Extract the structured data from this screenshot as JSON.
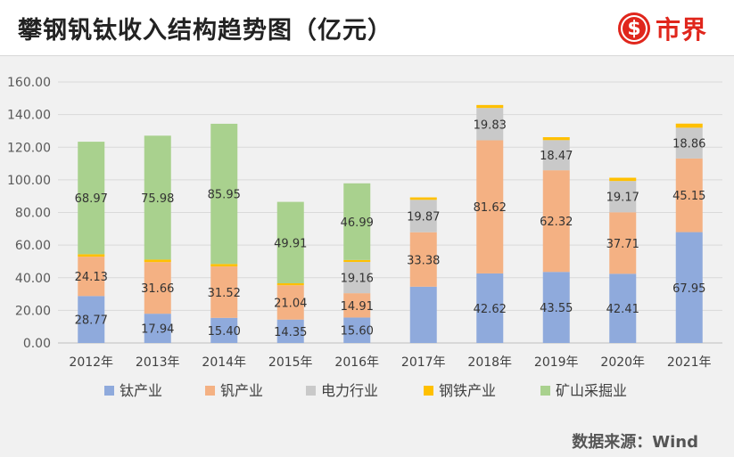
{
  "header": {
    "title": "攀钢钒钛收入结构趋势图（亿元）",
    "brand_name": "市界"
  },
  "source": "数据来源：Wind",
  "colors": {
    "钛产业": "#8faadc",
    "钒产业": "#f4b183",
    "电力行业": "#c9c9c9",
    "钢铁产业": "#ffc000",
    "矿山采掘业": "#a9d18e"
  },
  "chart_data": {
    "type": "bar",
    "stacked": true,
    "title": "攀钢钒钛收入结构趋势图（亿元）",
    "categories": [
      "2012年",
      "2013年",
      "2014年",
      "2015年",
      "2016年",
      "2017年",
      "2018年",
      "2019年",
      "2020年",
      "2021年"
    ],
    "ylim": [
      0,
      160
    ],
    "yticks": [
      "0.00",
      "20.00",
      "40.00",
      "60.00",
      "80.00",
      "100.00",
      "120.00",
      "140.00",
      "160.00"
    ],
    "grid": true,
    "legend": "bottom",
    "series": [
      {
        "name": "钛产业",
        "values": [
          28.77,
          17.94,
          15.4,
          14.35,
          15.6,
          34.5,
          42.62,
          43.55,
          42.41,
          67.95
        ],
        "labels": [
          "28.77",
          "17.94",
          "15.40",
          "14.35",
          "15.60",
          "",
          "42.62",
          "43.55",
          "42.41",
          "67.95"
        ]
      },
      {
        "name": "钒产业",
        "values": [
          24.13,
          31.66,
          31.52,
          21.04,
          14.91,
          33.38,
          81.62,
          62.32,
          37.71,
          45.15
        ],
        "labels": [
          "24.13",
          "31.66",
          "31.52",
          "21.04",
          "14.91",
          "33.38",
          "81.62",
          "62.32",
          "37.71",
          "45.15"
        ]
      },
      {
        "name": "电力行业",
        "values": [
          0,
          0,
          0,
          0,
          19.16,
          19.87,
          19.83,
          18.47,
          19.17,
          18.86
        ],
        "labels": [
          "",
          "",
          "",
          "",
          "19.16",
          "19.87",
          "19.83",
          "18.47",
          "19.17",
          "18.86"
        ]
      },
      {
        "name": "钢铁产业",
        "values": [
          1.5,
          1.5,
          1.5,
          1.2,
          1.2,
          1.5,
          1.8,
          1.8,
          2.0,
          2.5
        ],
        "labels": [
          "",
          "",
          "",
          "",
          "",
          "",
          "",
          "",
          "",
          ""
        ]
      },
      {
        "name": "矿山采掘业",
        "values": [
          68.97,
          75.98,
          85.95,
          49.91,
          46.99,
          0,
          0,
          0,
          0,
          0
        ],
        "labels": [
          "68.97",
          "75.98",
          "85.95",
          "49.91",
          "46.99",
          "",
          "",
          "",
          "",
          ""
        ]
      }
    ]
  }
}
